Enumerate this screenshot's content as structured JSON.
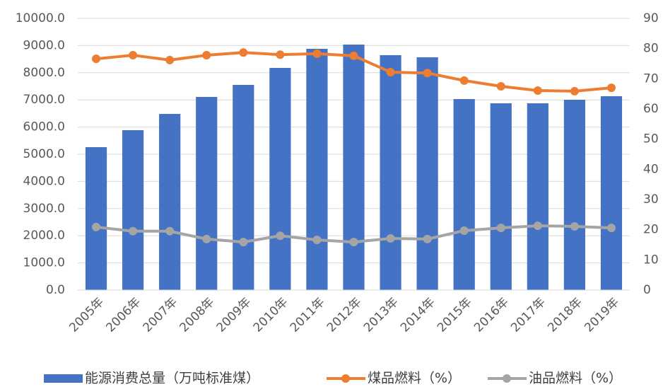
{
  "chart_data": {
    "type": "bar",
    "categories": [
      "2005年",
      "2006年",
      "2007年",
      "2008年",
      "2009年",
      "2010年",
      "2011年",
      "2012年",
      "2013年",
      "2014年",
      "2015年",
      "2016年",
      "2017年",
      "2018年",
      "2019年"
    ],
    "series": [
      {
        "name": "能源消费总量（万吨标准煤）",
        "type": "bar",
        "color": "#4472c4",
        "axis": "y",
        "values": [
          5260,
          5885,
          6484,
          7109,
          7552,
          8177,
          8880,
          9036,
          8646,
          8568,
          7031,
          6875,
          6875,
          7005,
          7135
        ]
      },
      {
        "name": "煤品燃料（%）",
        "type": "line",
        "color": "#ed7d31",
        "axis": "y2",
        "values": [
          76.6,
          77.8,
          76.2,
          77.8,
          78.7,
          78.0,
          78.3,
          77.6,
          72.2,
          71.9,
          69.4,
          67.5,
          66.1,
          65.9,
          67.0
        ]
      },
      {
        "name": "油品燃料（%）",
        "type": "line",
        "color": "#a5a5a5",
        "axis": "y2",
        "values": [
          20.9,
          19.5,
          19.5,
          16.9,
          15.9,
          18.0,
          16.6,
          15.9,
          17.1,
          16.9,
          19.7,
          20.6,
          21.3,
          21.1,
          20.6
        ]
      }
    ],
    "ylim": [
      0,
      10000
    ],
    "yticks": [
      {
        "value": 0,
        "label": "0.0"
      },
      {
        "value": 1000,
        "label": "1000.0"
      },
      {
        "value": 2000,
        "label": "2000.0"
      },
      {
        "value": 3000,
        "label": "3000.0"
      },
      {
        "value": 4000,
        "label": "4000.0"
      },
      {
        "value": 5000,
        "label": "5000.0"
      },
      {
        "value": 6000,
        "label": "6000.0"
      },
      {
        "value": 7000,
        "label": "7000.0"
      },
      {
        "value": 8000,
        "label": "8000.0"
      },
      {
        "value": 9000,
        "label": "9000.0"
      },
      {
        "value": 10000,
        "label": "10000.0"
      }
    ],
    "y2lim": [
      0,
      90
    ],
    "y2ticks": [
      0,
      10,
      20,
      30,
      40,
      50,
      60,
      70,
      80,
      90
    ],
    "grid": true,
    "legend": "bottom"
  }
}
